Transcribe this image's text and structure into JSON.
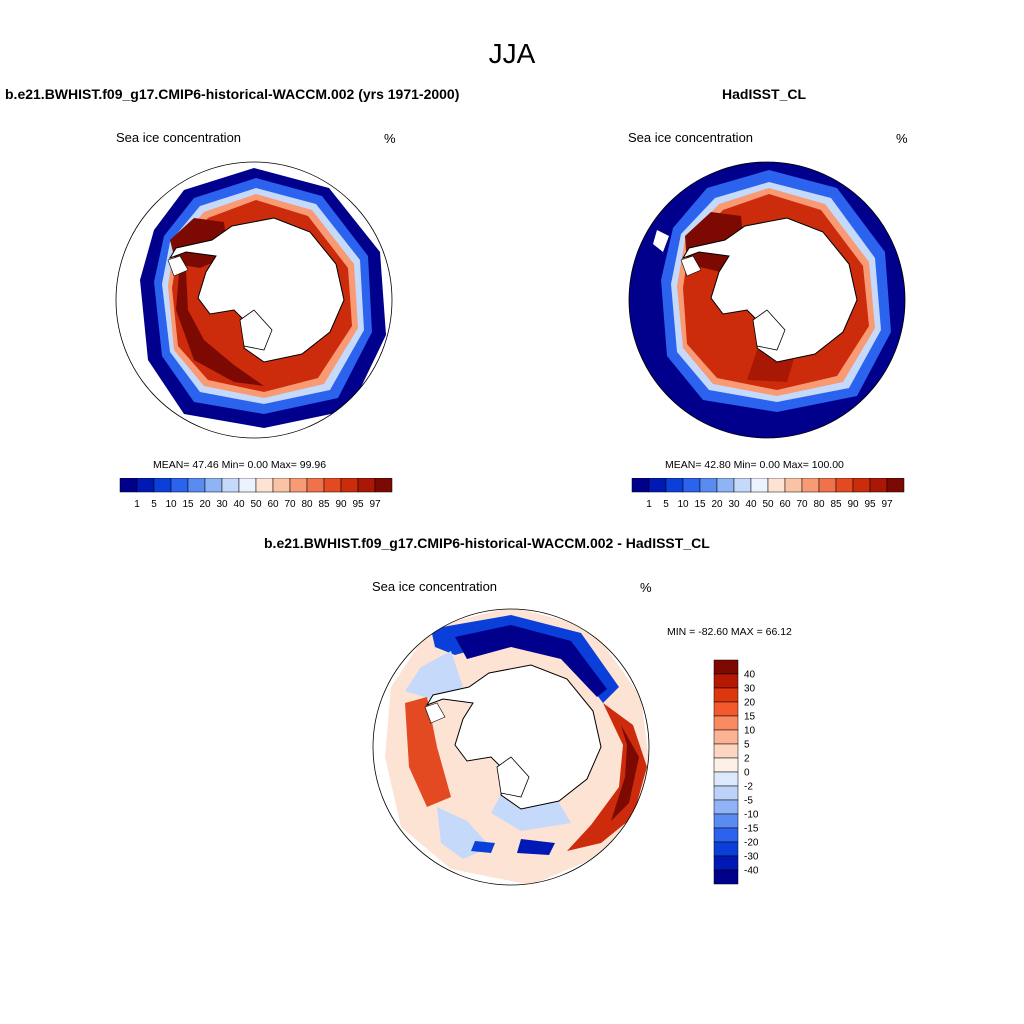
{
  "page": {
    "title": "JJA"
  },
  "panels": [
    {
      "title": "b.e21.BWHIST.f09_g17.CMIP6-historical-WACCM.002 (yrs 1971-2000)",
      "field": "Sea ice concentration",
      "units": "%",
      "stats": "MEAN=  47.46  Min=   0.00  Max=  99.96"
    },
    {
      "title": "HadISST_CL",
      "field": "Sea ice concentration",
      "units": "%",
      "stats": "MEAN=  42.80  Min=   0.00  Max= 100.00"
    },
    {
      "title": "b.e21.BWHIST.f09_g17.CMIP6-historical-WACCM.002 - HadISST_CL",
      "field": "Sea ice concentration",
      "units": "%",
      "stats": "MIN = -82.60 MAX =  66.12"
    }
  ],
  "colorbars": {
    "field_levels": [
      "1",
      "5",
      "10",
      "15",
      "20",
      "30",
      "40",
      "50",
      "60",
      "70",
      "80",
      "85",
      "90",
      "95",
      "97"
    ],
    "field_colors": [
      "#00008c",
      "#0019b5",
      "#0a40d9",
      "#2b63ee",
      "#5a8bf0",
      "#8fb3f5",
      "#c5d9fa",
      "#edf3fd",
      "#fde3d3",
      "#fbc3a5",
      "#f89a73",
      "#f0724a",
      "#e34a22",
      "#cc2b0c",
      "#a81804",
      "#7d0a02"
    ],
    "diff_levels": [
      "40",
      "30",
      "20",
      "15",
      "10",
      "5",
      "2",
      "0",
      "-2",
      "-5",
      "-10",
      "-15",
      "-20",
      "-30",
      "-40"
    ],
    "diff_colors": [
      "#7d0a02",
      "#b51904",
      "#dd3710",
      "#f25a2e",
      "#f98b62",
      "#fbb393",
      "#fdd6c2",
      "#fdf0e8",
      "#dce8fb",
      "#bcd2f8",
      "#8fb3f5",
      "#5a8bf0",
      "#2b63ee",
      "#0a40d9",
      "#0019b5",
      "#00008c"
    ]
  },
  "maps": {
    "symbols": [
      "antarctica-landmass",
      "sea-ice-field",
      "sea-ice-difference"
    ]
  }
}
